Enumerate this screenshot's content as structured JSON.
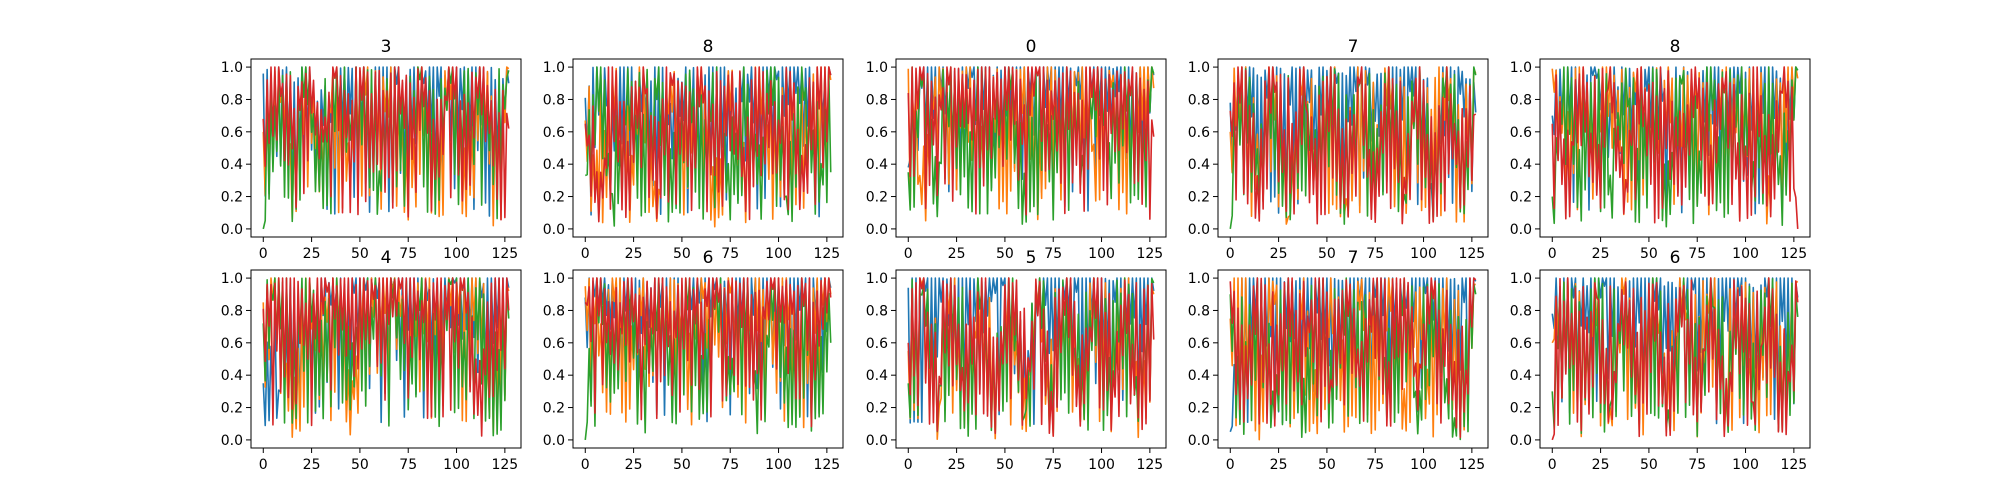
{
  "figure": {
    "series_colors": [
      "#1f77b4",
      "#ff7f0e",
      "#2ca02c",
      "#d62728"
    ]
  },
  "chart_data": [
    {
      "type": "line",
      "title": "3",
      "x_range": [
        0,
        127
      ],
      "xlim": [
        -6.35,
        133.35
      ],
      "ylim": [
        -0.05,
        1.05
      ],
      "x_ticks": [
        "0",
        "25",
        "50",
        "75",
        "100",
        "125"
      ],
      "y_ticks": [
        "0.0",
        "0.2",
        "0.4",
        "0.6",
        "0.8",
        "1.0"
      ],
      "series": [
        {
          "values": [
            0.96,
            0.72,
            0.83,
            0.91,
            0.64,
            0.88,
            0.95,
            0.78,
            0.86,
            0.99,
            0.71,
            0.9,
            0.97,
            0.8,
            0.88,
            0.93,
            0.68,
            0.9
          ]
        },
        {
          "values": [
            0.6,
            0.92,
            0.4,
            0.98,
            0.31,
            0.99,
            0.28,
            0.96,
            0.55,
            0.99,
            0.1,
            0.98,
            0.3,
            0.99,
            0.07,
            0.97,
            0.12,
            0.99
          ]
        },
        {
          "values": [
            0.0,
            0.88,
            0.46,
            0.99,
            0.24,
            0.92,
            0.56,
            0.99,
            0.11,
            0.97,
            0.63,
            0.99,
            0.35,
            0.95,
            0.48,
            0.99,
            0.25,
            0.98
          ]
        },
        {
          "values": [
            0.68,
            0.99,
            0.52,
            0.93,
            0.47,
            0.99,
            0.6,
            0.95,
            0.39,
            0.99,
            0.55,
            0.97,
            0.44,
            0.99,
            0.58,
            0.96,
            0.45,
            0.62
          ]
        }
      ]
    },
    {
      "type": "line",
      "title": "8",
      "x_range": [
        0,
        127
      ],
      "xlim": [
        -6.35,
        133.35
      ],
      "ylim": [
        -0.05,
        1.05
      ],
      "x_ticks": [
        "0",
        "25",
        "50",
        "75",
        "100",
        "125"
      ],
      "y_ticks": [
        "0.0",
        "0.2",
        "0.4",
        "0.6",
        "0.8",
        "1.0"
      ],
      "series": [
        {
          "values": [
            0.81,
            0.89,
            0.62,
            0.94,
            0.73,
            0.97,
            0.66,
            0.91,
            0.78,
            0.99,
            0.7,
            0.93,
            0.74,
            0.98,
            0.82,
            0.9,
            0.67,
            0.95
          ]
        },
        {
          "values": [
            0.67,
            0.15,
            0.98,
            0.24,
            0.99,
            0.04,
            0.97,
            0.32,
            0.99,
            0.05,
            0.94,
            0.29,
            0.99,
            0.08,
            0.96,
            0.33,
            0.99,
            0.92
          ]
        },
        {
          "values": [
            0.33,
            0.99,
            0.02,
            0.95,
            0.18,
            0.99,
            0.1,
            0.92,
            0.27,
            0.99,
            0.05,
            0.96,
            0.22,
            0.99,
            0.08,
            0.93,
            0.3,
            0.35
          ]
        },
        {
          "values": [
            0.65,
            0.02,
            0.88,
            0.3,
            0.99,
            0.25,
            0.93,
            0.4,
            0.99,
            0.31,
            0.96,
            0.28,
            0.99,
            0.36,
            0.94,
            0.26,
            0.99,
            0.95
          ]
        }
      ]
    },
    {
      "type": "line",
      "title": "0",
      "x_range": [
        0,
        127
      ],
      "xlim": [
        -6.35,
        133.35
      ],
      "ylim": [
        -0.05,
        1.05
      ],
      "x_ticks": [
        "0",
        "25",
        "50",
        "75",
        "100",
        "125"
      ],
      "y_ticks": [
        "0.0",
        "0.2",
        "0.4",
        "0.6",
        "0.8",
        "1.0"
      ],
      "series": [
        {
          "values": [
            0.38,
            0.92,
            0.97,
            0.85,
            0.99,
            0.93,
            0.88,
            0.97,
            0.95,
            0.9,
            0.99,
            0.94,
            0.87,
            0.99,
            0.92,
            0.96,
            0.88,
            0.95
          ]
        },
        {
          "values": [
            0.99,
            0.1,
            0.97,
            0.45,
            0.99,
            0.38,
            0.92,
            0.52,
            0.99,
            0.4,
            0.95,
            0.47,
            0.99,
            0.36,
            0.91,
            0.44,
            0.99,
            0.87
          ]
        },
        {
          "values": [
            0.35,
            0.96,
            0.22,
            0.99,
            0.33,
            0.94,
            0.4,
            0.99,
            0.0,
            0.9,
            0.36,
            0.99,
            0.26,
            0.95,
            0.41,
            0.99,
            0.3,
            0.96
          ]
        },
        {
          "values": [
            0.84,
            0.99,
            0.72,
            0.94,
            0.66,
            0.99,
            0.78,
            0.93,
            0.69,
            0.99,
            0.74,
            0.95,
            0.63,
            0.99,
            0.77,
            0.92,
            0.68,
            0.57
          ]
        }
      ]
    },
    {
      "type": "line",
      "title": "7",
      "x_range": [
        0,
        127
      ],
      "xlim": [
        -6.35,
        133.35
      ],
      "ylim": [
        -0.05,
        1.05
      ],
      "x_ticks": [
        "0",
        "25",
        "50",
        "75",
        "100",
        "125"
      ],
      "y_ticks": [
        "0.0",
        "0.2",
        "0.4",
        "0.6",
        "0.8",
        "1.0"
      ],
      "series": [
        {
          "values": [
            0.78,
            0.99,
            0.82,
            0.95,
            0.88,
            0.99,
            0.79,
            0.97,
            0.85,
            0.99,
            0.81,
            0.96,
            0.87,
            0.99,
            0.14,
            0.98,
            0.83,
            0.72
          ]
        },
        {
          "values": [
            0.6,
            0.99,
            0.25,
            0.97,
            0.0,
            0.99,
            0.18,
            0.95,
            0.03,
            0.99,
            0.21,
            0.97,
            0.06,
            0.99,
            0.3,
            0.94,
            0.08,
            0.96
          ]
        },
        {
          "values": [
            0.0,
            0.95,
            0.2,
            0.99,
            0.08,
            0.93,
            0.27,
            0.99,
            0.04,
            0.96,
            0.22,
            0.99,
            0.1,
            0.94,
            0.28,
            0.99,
            0.07,
            0.95
          ]
        },
        {
          "values": [
            0.73,
            0.99,
            0.05,
            0.96,
            0.12,
            0.99,
            0.02,
            0.94,
            0.16,
            0.99,
            0.07,
            0.97,
            0.1,
            0.99,
            0.04,
            0.95,
            0.13,
            0.71
          ]
        }
      ]
    },
    {
      "type": "line",
      "title": "8",
      "x_range": [
        0,
        127
      ],
      "xlim": [
        -6.35,
        133.35
      ],
      "ylim": [
        -0.05,
        1.05
      ],
      "x_ticks": [
        "0",
        "25",
        "50",
        "75",
        "100",
        "125"
      ],
      "y_ticks": [
        "0.0",
        "0.2",
        "0.4",
        "0.6",
        "0.8",
        "1.0"
      ],
      "series": [
        {
          "values": [
            0.7,
            0.92,
            0.78,
            0.99,
            0.66,
            0.95,
            0.83,
            0.99,
            0.72,
            0.93,
            0.8,
            0.99,
            0.69,
            0.96,
            0.85,
            0.99,
            0.74,
            0.98
          ]
        },
        {
          "values": [
            0.99,
            0.56,
            0.98,
            0.44,
            0.99,
            0.62,
            0.95,
            0.38,
            0.99,
            0.51,
            0.97,
            0.47,
            0.99,
            0.58,
            0.94,
            0.0,
            0.99,
            0.93
          ]
        },
        {
          "values": [
            0.2,
            0.99,
            0.08,
            0.93,
            0.15,
            0.99,
            0.05,
            0.96,
            0.0,
            0.99,
            0.12,
            0.94,
            0.06,
            0.99,
            0.18,
            0.95,
            0.1,
            0.98
          ]
        },
        {
          "values": [
            0.65,
            0.12,
            0.99,
            0.2,
            0.97,
            0.09,
            0.99,
            0.25,
            0.94,
            0.14,
            0.99,
            0.22,
            0.96,
            0.11,
            0.99,
            0.18,
            0.95,
            0.0
          ]
        }
      ]
    },
    {
      "type": "line",
      "title": "4",
      "x_range": [
        0,
        127
      ],
      "xlim": [
        -6.35,
        133.35
      ],
      "ylim": [
        -0.05,
        1.05
      ],
      "x_ticks": [
        "0",
        "25",
        "50",
        "75",
        "100",
        "125"
      ],
      "y_ticks": [
        "0.0",
        "0.2",
        "0.4",
        "0.6",
        "0.8",
        "1.0"
      ],
      "series": [
        {
          "values": [
            0.35,
            0.2,
            0.97,
            0.3,
            0.99,
            0.86,
            0.94,
            0.99,
            0.88,
            0.96,
            0.99,
            0.91,
            0.87,
            0.99,
            0.93,
            0.89,
            0.99,
            0.94
          ]
        },
        {
          "values": [
            0.85,
            0.99,
            0.05,
            0.96,
            0.7,
            0.99,
            0.07,
            0.94,
            0.78,
            0.99,
            0.62,
            0.97,
            0.72,
            0.99,
            0.66,
            0.95,
            0.01,
            0.92
          ]
        },
        {
          "values": [
            0.72,
            0.99,
            0.42,
            0.95,
            0.55,
            0.99,
            0.39,
            0.93,
            0.5,
            0.99,
            0.44,
            0.96,
            0.31,
            0.99,
            0.47,
            0.94,
            0.0,
            0.75
          ]
        },
        {
          "values": [
            0.81,
            0.93,
            0.99,
            0.74,
            0.96,
            0.85,
            0.99,
            0.78,
            0.94,
            0.88,
            0.99,
            0.8,
            0.95,
            0.83,
            0.99,
            0.05,
            0.97,
            0.8
          ]
        }
      ]
    },
    {
      "type": "line",
      "title": "6",
      "x_range": [
        0,
        127
      ],
      "xlim": [
        -6.35,
        133.35
      ],
      "ylim": [
        -0.05,
        1.05
      ],
      "x_ticks": [
        "0",
        "25",
        "50",
        "75",
        "100",
        "125"
      ],
      "y_ticks": [
        "0.0",
        "0.2",
        "0.4",
        "0.6",
        "0.8",
        "1.0"
      ],
      "series": [
        {
          "values": [
            0.88,
            0.97,
            0.82,
            0.99,
            0.91,
            0.86,
            0.99,
            0.84,
            0.95,
            0.99,
            0.89,
            0.93,
            0.99,
            0.85,
            0.96,
            0.99,
            0.87,
            0.94
          ]
        },
        {
          "values": [
            0.95,
            0.62,
            0.99,
            0.55,
            0.97,
            0.68,
            0.99,
            0.5,
            0.94,
            0.64,
            0.99,
            0.58,
            0.96,
            0.7,
            0.99,
            0.02,
            0.93,
            0.9
          ]
        },
        {
          "values": [
            0.0,
            0.97,
            0.35,
            0.99,
            0.12,
            0.94,
            0.28,
            0.99,
            0.05,
            0.96,
            0.33,
            0.99,
            0.09,
            0.93,
            0.3,
            0.99,
            0.14,
            0.6
          ]
        },
        {
          "values": [
            0.85,
            0.99,
            0.62,
            0.95,
            0.7,
            0.99,
            0.58,
            0.93,
            0.74,
            0.99,
            0.66,
            0.96,
            0.61,
            0.99,
            0.72,
            0.94,
            0.65,
            0.88
          ]
        }
      ]
    },
    {
      "type": "line",
      "title": "5",
      "x_range": [
        0,
        127
      ],
      "xlim": [
        -6.35,
        133.35
      ],
      "ylim": [
        -0.05,
        1.05
      ],
      "x_ticks": [
        "0",
        "25",
        "50",
        "75",
        "100",
        "125"
      ],
      "y_ticks": [
        "0.0",
        "0.2",
        "0.4",
        "0.6",
        "0.8",
        "1.0"
      ],
      "series": [
        {
          "values": [
            0.94,
            0.99,
            0.87,
            0.96,
            0.99,
            0.9,
            0.95,
            0.99,
            0.15,
            0.93,
            0.99,
            0.88,
            0.97,
            0.99,
            0.91,
            0.94,
            0.99,
            0.92
          ]
        },
        {
          "values": [
            0.55,
            0.99,
            0.0,
            0.97,
            0.08,
            0.99,
            0.03,
            0.95,
            0.1,
            0.99,
            0.02,
            0.96,
            0.12,
            0.99,
            0.05,
            0.94,
            0.07,
            0.9
          ]
        },
        {
          "values": [
            0.35,
            0.95,
            0.1,
            0.99,
            0.02,
            0.93,
            0.15,
            0.99,
            0.05,
            0.96,
            0.11,
            0.99,
            0.03,
            0.94,
            0.14,
            0.99,
            0.06,
            0.97
          ]
        },
        {
          "values": [
            0.6,
            0.99,
            0.12,
            0.95,
            0.18,
            0.99,
            0.09,
            0.93,
            0.2,
            0.99,
            0.14,
            0.96,
            0.1,
            0.99,
            0.17,
            0.94,
            0.11,
            0.62
          ]
        }
      ]
    },
    {
      "type": "line",
      "title": "7",
      "x_range": [
        0,
        127
      ],
      "xlim": [
        -6.35,
        133.35
      ],
      "ylim": [
        -0.05,
        1.05
      ],
      "x_ticks": [
        "0",
        "25",
        "50",
        "75",
        "100",
        "125"
      ],
      "y_ticks": [
        "0.0",
        "0.2",
        "0.4",
        "0.6",
        "0.8",
        "1.0"
      ],
      "series": [
        {
          "values": [
            0.05,
            0.99,
            0.9,
            0.97,
            0.85,
            0.99,
            0.92,
            0.95,
            0.88,
            0.99,
            0.93,
            0.96,
            0.86,
            0.99,
            0.91,
            0.94,
            0.89,
            0.98
          ]
        },
        {
          "values": [
            0.75,
            0.99,
            0.0,
            0.96,
            0.06,
            0.99,
            0.02,
            0.94,
            0.09,
            0.99,
            0.04,
            0.97,
            0.08,
            0.99,
            0.03,
            0.95,
            0.07,
            0.96
          ]
        },
        {
          "values": [
            0.9,
            0.08,
            0.97,
            0.15,
            0.99,
            0.05,
            0.94,
            0.18,
            0.99,
            0.1,
            0.96,
            0.14,
            0.99,
            0.07,
            0.93,
            0.16,
            0.0,
            0.9
          ]
        },
        {
          "values": [
            0.98,
            0.4,
            0.99,
            0.32,
            0.95,
            0.45,
            0.99,
            0.28,
            0.93,
            0.42,
            0.99,
            0.35,
            0.96,
            0.3,
            0.99,
            0.38,
            0.07,
            0.99
          ]
        }
      ]
    },
    {
      "type": "line",
      "title": "6",
      "x_range": [
        0,
        127
      ],
      "xlim": [
        -6.35,
        133.35
      ],
      "ylim": [
        -0.05,
        1.05
      ],
      "x_ticks": [
        "0",
        "25",
        "50",
        "75",
        "100",
        "125"
      ],
      "y_ticks": [
        "0.0",
        "0.2",
        "0.4",
        "0.6",
        "0.8",
        "1.0"
      ],
      "series": [
        {
          "values": [
            0.78,
            0.99,
            0.85,
            0.93,
            0.99,
            0.8,
            0.96,
            0.99,
            0.84,
            0.92,
            0.99,
            0.87,
            0.95,
            0.99,
            0.82,
            0.94,
            0.99,
            0.88
          ]
        },
        {
          "values": [
            0.6,
            0.99,
            0.02,
            0.95,
            0.1,
            0.99,
            0.05,
            0.97,
            0.14,
            0.99,
            0.03,
            0.94,
            0.11,
            0.99,
            0.07,
            0.96,
            0.12,
            0.98
          ]
        },
        {
          "values": [
            0.3,
            0.97,
            0.05,
            0.99,
            0.14,
            0.94,
            0.08,
            0.99,
            0.02,
            0.95,
            0.12,
            0.99,
            0.06,
            0.93,
            0.15,
            0.99,
            0.04,
            0.76
          ]
        },
        {
          "values": [
            0.0,
            0.99,
            0.08,
            0.96,
            0.04,
            0.99,
            0.11,
            0.94,
            0.06,
            0.99,
            0.09,
            0.97,
            0.03,
            0.99,
            0.1,
            0.95,
            0.05,
            0.85
          ]
        }
      ]
    }
  ]
}
